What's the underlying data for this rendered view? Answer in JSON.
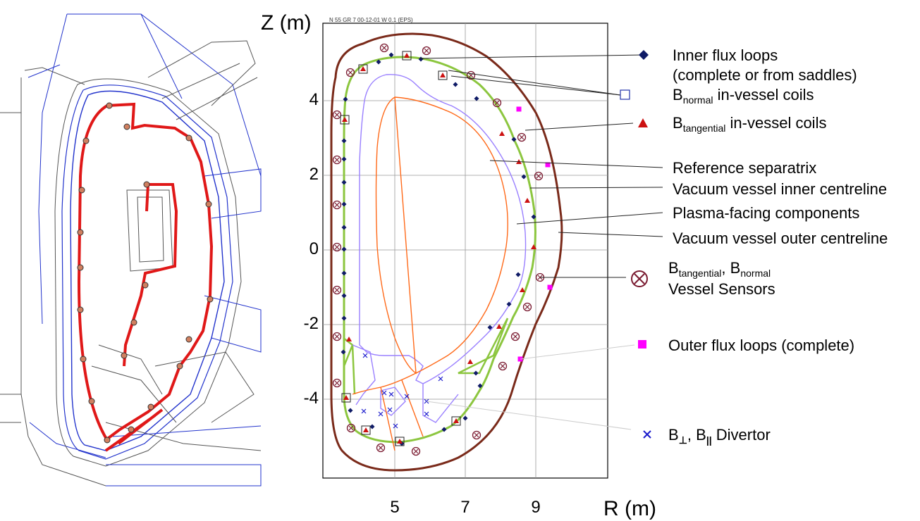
{
  "figure": {
    "plot_note": "N 55 GR 7 00-12-01 W 0.1 (EPS)",
    "z_axis_title": "Z (m)",
    "r_axis_title": "R (m)",
    "z_ticks": [
      "4",
      "2",
      "0",
      "-2",
      "-4"
    ],
    "r_ticks": [
      "5",
      "7",
      "9"
    ]
  },
  "legend": {
    "inner_flux": {
      "line1": "Inner flux loops",
      "line2": "(complete or from saddles)",
      "icon": "diamond-icon",
      "color": "#0f1b66"
    },
    "bnormal": {
      "B": "B",
      "sub": "normal",
      "rest": "in-vessel coils",
      "icon": "open-square-icon"
    },
    "btangential": {
      "B": "B",
      "sub": "tangential",
      "rest": "in-vessel coils",
      "icon": "triangle-icon",
      "color": "#cc1111"
    },
    "separatrix": {
      "label": "Reference separatrix",
      "color": "#ff6a1a"
    },
    "vv_inner": {
      "label": "Vacuum vessel inner centreline",
      "color": "#8cc63f"
    },
    "pfc": {
      "label": "Plasma-facing components",
      "color": "#9a80ff"
    },
    "vv_outer": {
      "label": "Vacuum vessel outer centreline",
      "color": "#7a2a1a"
    },
    "vessel_sensors": {
      "B1": "B",
      "sub1": "tangential",
      "sep": ", ",
      "B2": "B",
      "sub2": "normal",
      "line2": "Vessel Sensors",
      "icon": "circled-x-icon",
      "color": "#7a1a30"
    },
    "outer_flux": {
      "label": "Outer flux loops (complete)",
      "icon": "square-icon",
      "color": "#ff00ff"
    },
    "divertor": {
      "B1": "B",
      "sub1": "⊥",
      "sep": ", ",
      "B2": "B",
      "sub2": "||",
      "rest": "Divertor",
      "icon": "cross-icon",
      "color": "#1a1acc"
    }
  }
}
